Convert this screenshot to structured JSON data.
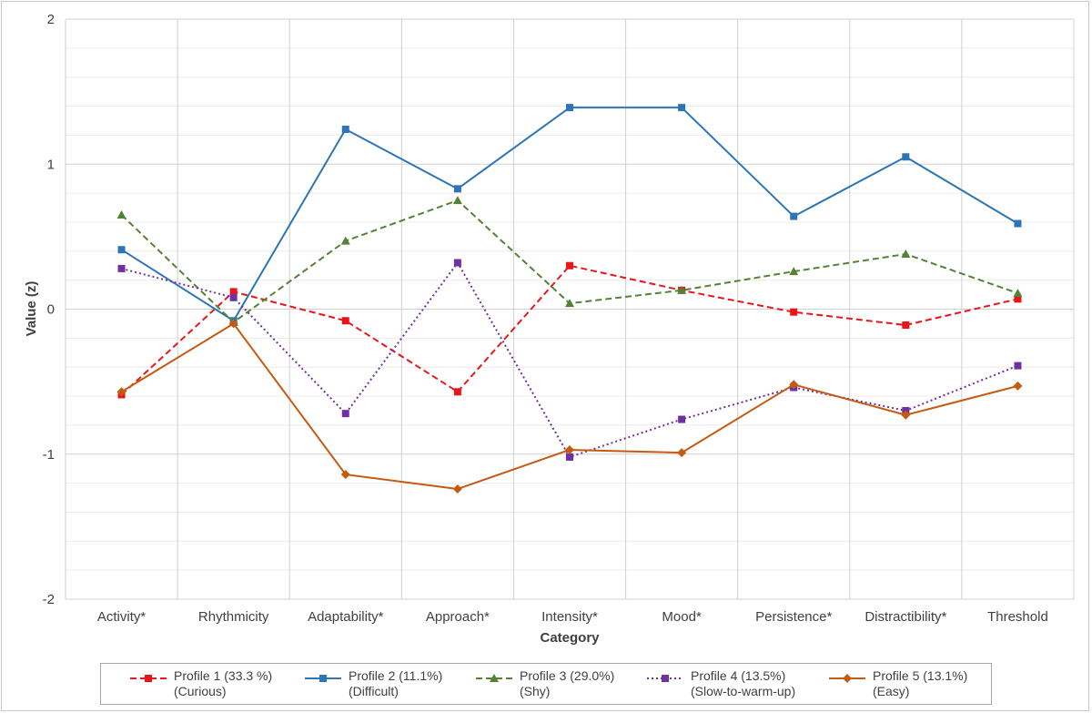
{
  "chart_data": {
    "type": "line",
    "title": "",
    "xlabel": "Category",
    "ylabel": "Value (z)",
    "ylim": [
      -2,
      2
    ],
    "yticks": [
      {
        "value": 2,
        "label": "2"
      },
      {
        "value": 1,
        "label": "1"
      },
      {
        "value": 0,
        "label": "0"
      },
      {
        "value": -1,
        "label": "-1"
      },
      {
        "value": -2,
        "label": "-2"
      }
    ],
    "grid": true,
    "legend_position": "bottom",
    "categories": [
      "Activity*",
      "Rhythmicity",
      "Adaptability*",
      "Approach*",
      "Intensity*",
      "Mood*",
      "Persistence*",
      "Distractibility*",
      "Threshold"
    ],
    "series": [
      {
        "name": "Profile 1 (33.3 %)",
        "sublabel": "(Curious)",
        "color": "#e8161b",
        "dash": "dashed",
        "marker": "square",
        "values": [
          -0.59,
          0.12,
          -0.08,
          -0.57,
          0.3,
          0.13,
          -0.02,
          -0.11,
          0.07
        ]
      },
      {
        "name": "Profile 2 (11.1%)",
        "sublabel": "(Difficult)",
        "color": "#2e75b6",
        "dash": "solid",
        "marker": "square",
        "values": [
          0.41,
          -0.08,
          1.24,
          0.83,
          1.39,
          1.39,
          0.64,
          1.05,
          0.59
        ]
      },
      {
        "name": "Profile 3 (29.0%)",
        "sublabel": "(Shy)",
        "color": "#548235",
        "dash": "dashed",
        "marker": "triangle",
        "values": [
          0.65,
          -0.09,
          0.47,
          0.75,
          0.04,
          0.13,
          0.26,
          0.38,
          0.11
        ]
      },
      {
        "name": "Profile 4 (13.5%)",
        "sublabel": "(Slow-to-warm-up)",
        "color": "#7030a0",
        "dash": "dotted",
        "marker": "square",
        "values": [
          0.28,
          0.08,
          -0.72,
          0.32,
          -1.02,
          -0.76,
          -0.54,
          -0.7,
          -0.39
        ]
      },
      {
        "name": "Profile 5 (13.1%)",
        "sublabel": "(Easy)",
        "color": "#c55a11",
        "dash": "solid",
        "marker": "diamond",
        "values": [
          -0.57,
          -0.1,
          -1.14,
          -1.24,
          -0.97,
          -0.99,
          -0.52,
          -0.73,
          -0.53
        ]
      }
    ]
  }
}
